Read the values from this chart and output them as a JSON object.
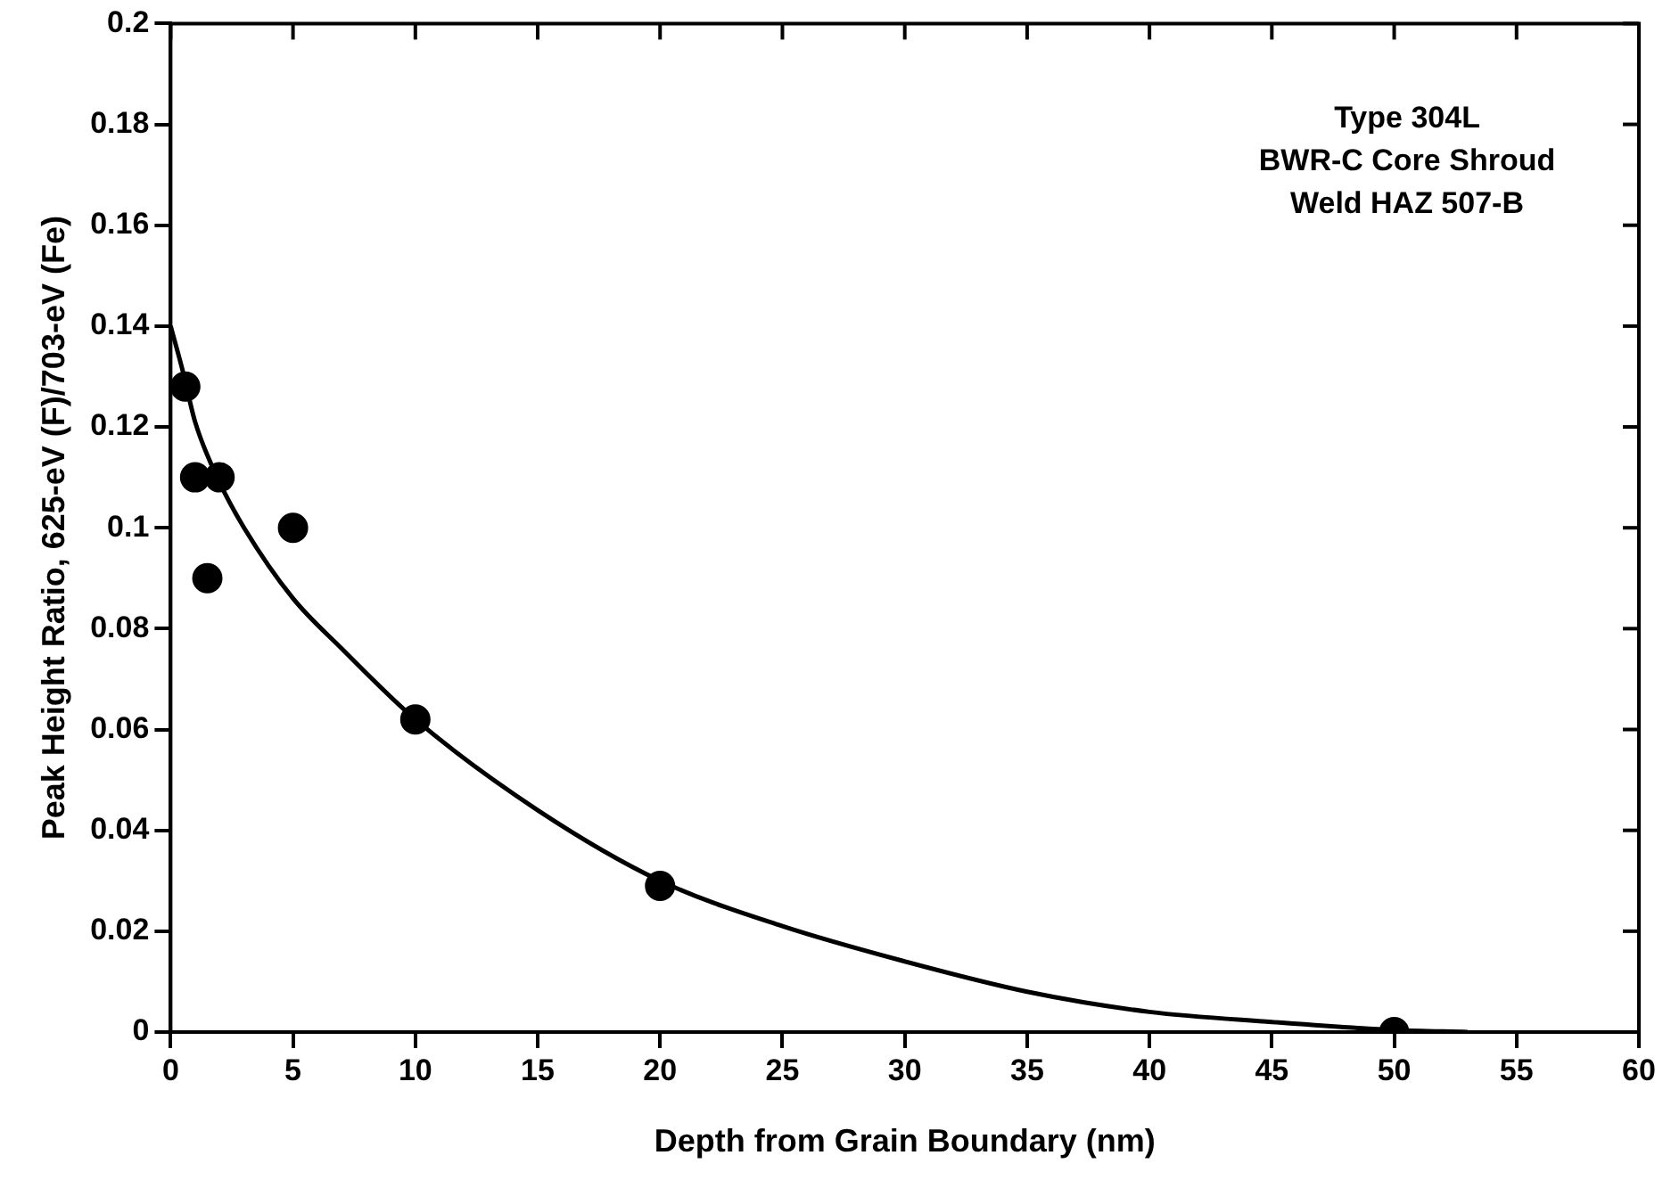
{
  "chart_data": {
    "type": "scatter",
    "xlabel": "Depth from Grain Boundary (nm)",
    "ylabel": "Peak Height Ratio, 625-eV (F)/703-eV (Fe)",
    "annotations": [
      "Type 304L",
      "BWR-C Core Shroud",
      "Weld HAZ 507-B"
    ],
    "xlim": [
      0,
      60
    ],
    "xticks": [
      0,
      5,
      10,
      15,
      20,
      25,
      30,
      35,
      40,
      45,
      50,
      55,
      60
    ],
    "ylim": [
      0,
      0.2
    ],
    "yticks": [
      0,
      0.02,
      0.04,
      0.06,
      0.08,
      0.1,
      0.12,
      0.14,
      0.16,
      0.18,
      0.2
    ],
    "grid": false,
    "legend": false,
    "marker": "circle",
    "series": [
      {
        "color": "#000000",
        "x": [
          0.6,
          1,
          1.5,
          2,
          5,
          10,
          20,
          50
        ],
        "values": [
          0.128,
          0.11,
          0.09,
          0.11,
          0.1,
          0.062,
          0.029,
          0
        ]
      },
      {
        "type": "line",
        "color": "#000000",
        "marker": "none",
        "line_style": "solid",
        "x": [
          0,
          0.5,
          1,
          2,
          3,
          5,
          7,
          10,
          15,
          20,
          25,
          30,
          35,
          40,
          45,
          50,
          53
        ],
        "values": [
          0.14,
          0.131,
          0.121,
          0.109,
          0.1,
          0.086,
          0.076,
          0.062,
          0.044,
          0.03,
          0.021,
          0.014,
          0.008,
          0.004,
          0.002,
          0.0004,
          0
        ]
      }
    ]
  }
}
